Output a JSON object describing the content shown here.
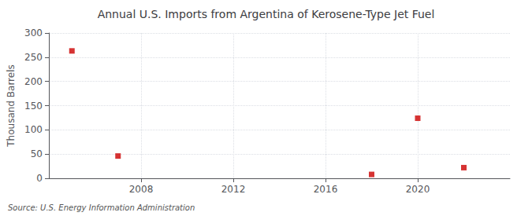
{
  "chart_data": {
    "type": "scatter",
    "title": "Annual U.S. Imports from Argentina of Kerosene-Type Jet Fuel",
    "ylabel": "Thousand Barrels",
    "source": "Source: U.S. Energy Information Administration",
    "x": [
      2005,
      2007,
      2018,
      2020,
      2022
    ],
    "values": [
      263,
      46,
      8,
      124,
      22
    ],
    "color": "#cc0000",
    "marker": "square",
    "xlim": [
      2004,
      2024
    ],
    "ylim": [
      0,
      300
    ],
    "xticks": [
      2008,
      2012,
      2016,
      2020
    ],
    "yticks": [
      0,
      50,
      100,
      150,
      200,
      250,
      300
    ],
    "grid": true
  }
}
